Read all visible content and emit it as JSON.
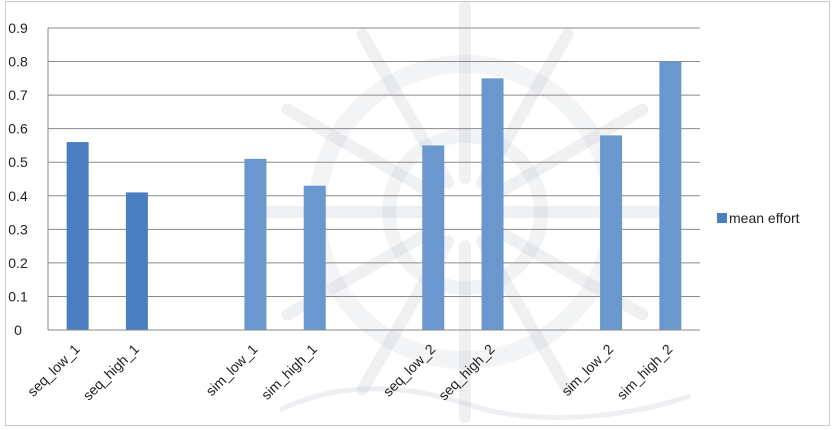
{
  "chart_data": {
    "type": "bar",
    "categories": [
      "seq_low_1",
      "seq_high_1",
      "",
      "sim_low_1",
      "sim_high_1",
      "",
      "seq_low_2",
      "seq_high_2",
      "",
      "sim_low_2",
      "sim_high_2"
    ],
    "series": [
      {
        "name": "mean effort",
        "values": [
          0.56,
          0.41,
          null,
          0.51,
          0.43,
          null,
          0.55,
          0.75,
          null,
          0.58,
          0.8
        ]
      }
    ],
    "ylim": [
      0,
      0.9
    ],
    "yticks": [
      "0",
      "0.1",
      "0.2",
      "0.3",
      "0.4",
      "0.5",
      "0.6",
      "0.7",
      "0.8",
      "0.9"
    ],
    "grid": true,
    "legend_position": "right",
    "colors": {
      "bar_dark": "#4a7ec0",
      "bar_light": "#6b97cf",
      "grid": "#8a8a8a",
      "watermark": "#bfc4cf"
    }
  }
}
